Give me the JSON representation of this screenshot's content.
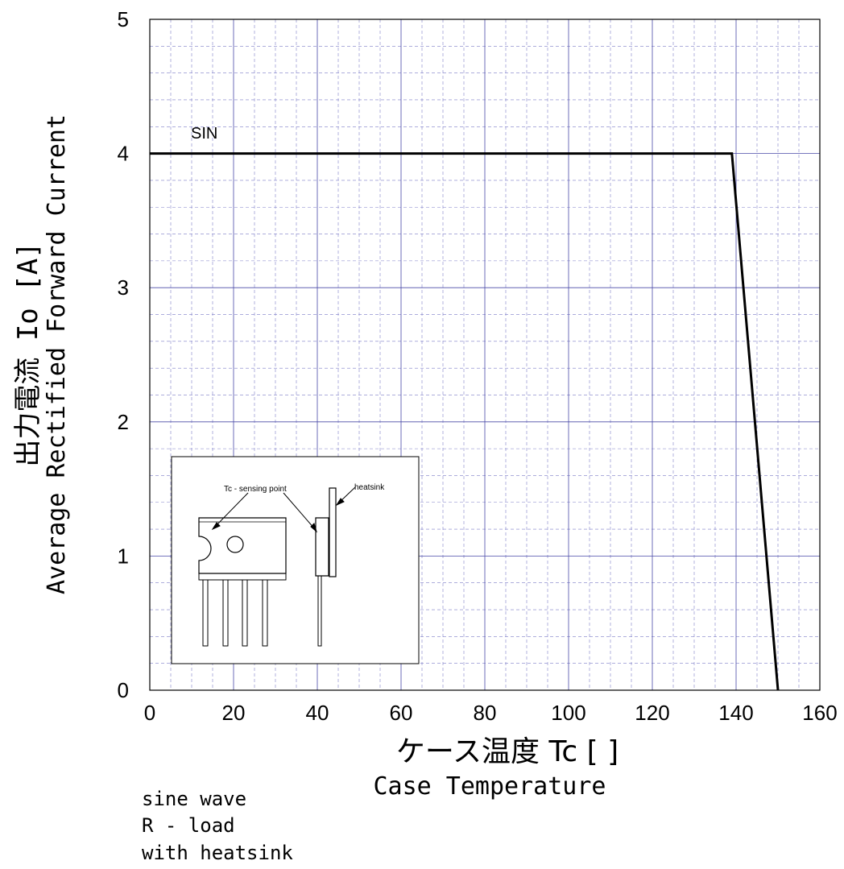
{
  "chart_data": {
    "type": "line",
    "xlim": [
      0,
      160
    ],
    "ylim": [
      0,
      5
    ],
    "x_ticks": [
      "0",
      "20",
      "40",
      "60",
      "80",
      "100",
      "120",
      "140",
      "160"
    ],
    "y_ticks": [
      "0",
      "1",
      "2",
      "3",
      "4",
      "5"
    ],
    "grid": true,
    "xlabel_jp": "ケース温度  Tc  [  ]",
    "xlabel_en": "Case  Temperature",
    "ylabel_jp": "出力電流  Io  [A]",
    "ylabel_en_1": "Average  Rectified  Forward  Current",
    "series": [
      {
        "name": "SIN",
        "x": [
          0,
          139,
          150
        ],
        "y": [
          4,
          4,
          0
        ]
      }
    ],
    "annotations": {
      "conditions": [
        "sine  wave",
        "R - load",
        "with  heatsink"
      ],
      "inset_label_tc": "Tc - sensing point",
      "inset_label_heatsink": "heatsink"
    }
  }
}
